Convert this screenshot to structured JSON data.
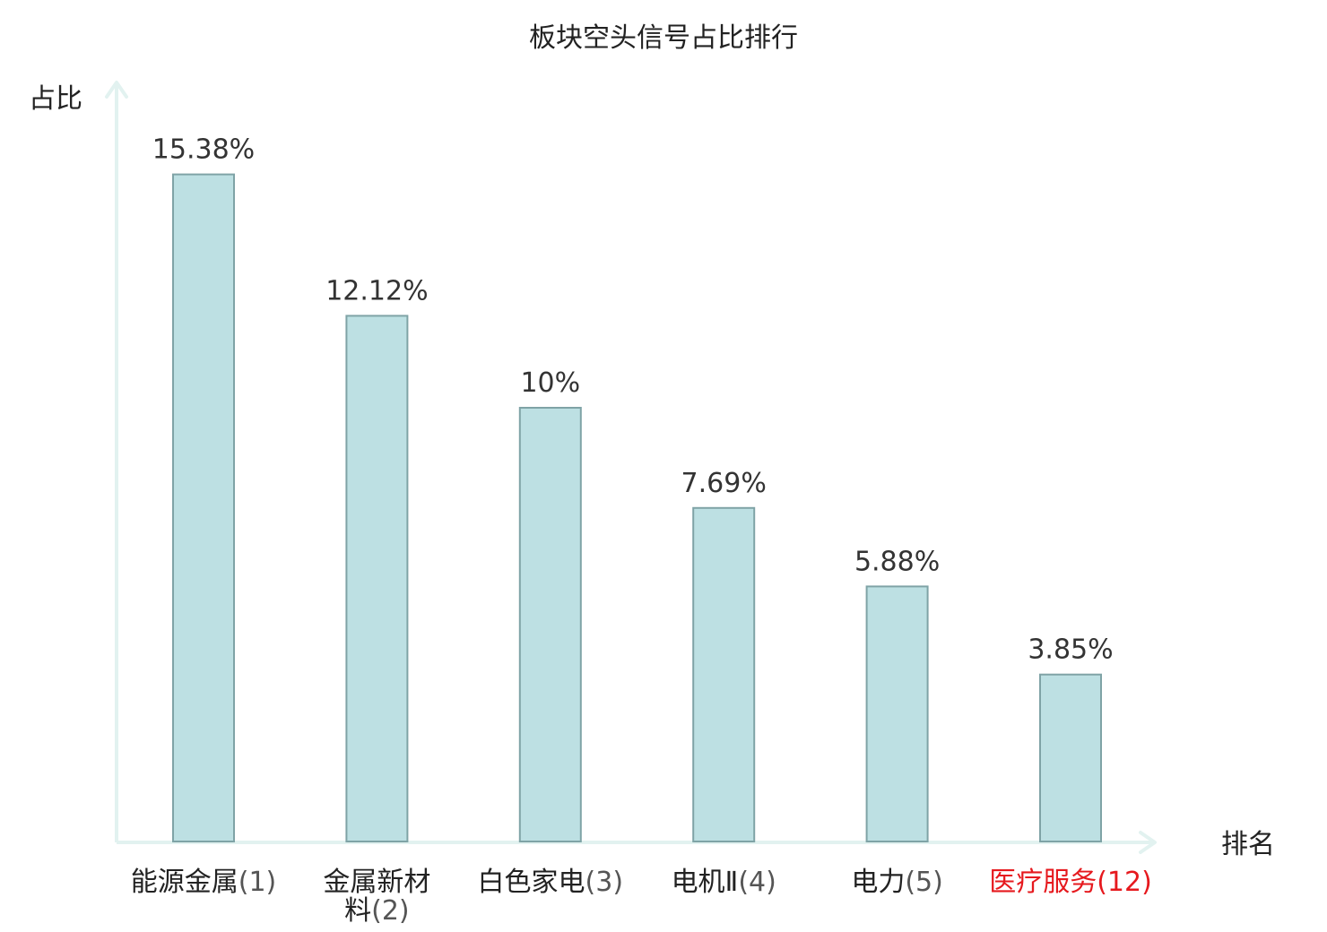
{
  "chart_data": {
    "type": "bar",
    "title": "板块空头信号占比排行",
    "ylabel": "占比",
    "xlabel": "排名",
    "categories": [
      {
        "name": "能源金属",
        "rank": "(1)"
      },
      {
        "name": "金属新材料",
        "rank": "(2)"
      },
      {
        "name": "白色家电",
        "rank": "(3)"
      },
      {
        "name": "电机Ⅱ",
        "rank": "(4)"
      },
      {
        "name": "电力",
        "rank": "(5)"
      },
      {
        "name": "医疗服务",
        "rank": "(12)"
      }
    ],
    "values": [
      15.38,
      12.12,
      10,
      7.69,
      5.88,
      3.85
    ],
    "value_labels": [
      "15.38%",
      "12.12%",
      "10%",
      "7.69%",
      "5.88%",
      "3.85%"
    ],
    "highlight_index": 5,
    "ylim": [
      0,
      17.5
    ],
    "grid": false,
    "legend": "none"
  },
  "colors": {
    "bar_fill": "#bde0e3",
    "bar_stroke": "#7fa3a6",
    "axis": "#e2f2f0",
    "text": "#222222",
    "value_text": "#333333",
    "highlight_text": "#e6191e"
  }
}
